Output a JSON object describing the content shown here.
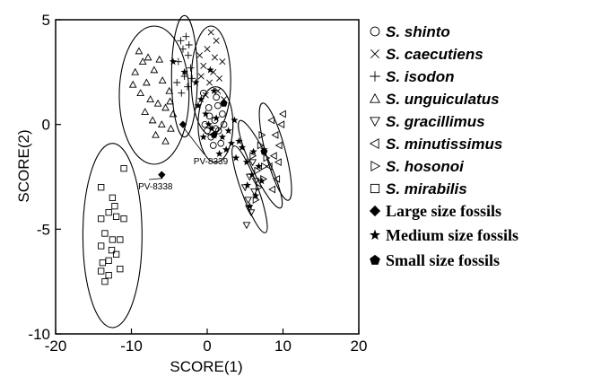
{
  "chart_data": {
    "type": "scatter",
    "xlabel": "SCORE(1)",
    "ylabel": "SCORE(2)",
    "xlim": [
      -20,
      20
    ],
    "ylim": [
      -10,
      5
    ],
    "xticks": [
      -20,
      -10,
      0,
      10,
      20
    ],
    "yticks": [
      -10,
      -5,
      0,
      5
    ],
    "grid": false,
    "legend_position": "right",
    "series": [
      {
        "name": "S. shinto",
        "marker": "circle",
        "points": [
          [
            -0.5,
            1.5
          ],
          [
            0.2,
            0.8
          ],
          [
            1.0,
            0.2
          ],
          [
            1.5,
            -0.3
          ],
          [
            0.5,
            -0.6
          ],
          [
            2.0,
            0.5
          ],
          [
            1.2,
            1.3
          ],
          [
            -0.3,
            0.0
          ],
          [
            0.8,
            -1.0
          ],
          [
            1.8,
            -0.9
          ],
          [
            2.2,
            0.0
          ],
          [
            0.3,
            0.4
          ],
          [
            1.4,
            0.9
          ],
          [
            0.0,
            -0.3
          ],
          [
            1.1,
            -0.2
          ]
        ]
      },
      {
        "name": "S. caecutiens",
        "marker": "x",
        "points": [
          [
            0.5,
            4.4
          ],
          [
            1.2,
            4.0
          ],
          [
            -1.0,
            3.3
          ],
          [
            0.0,
            3.6
          ],
          [
            1.0,
            3.2
          ],
          [
            -0.5,
            2.8
          ],
          [
            2.0,
            3.0
          ],
          [
            0.8,
            2.5
          ],
          [
            1.6,
            2.2
          ],
          [
            0.3,
            2.0
          ],
          [
            -0.8,
            2.3
          ],
          [
            1.4,
            1.6
          ],
          [
            -0.2,
            1.4
          ],
          [
            2.2,
            1.2
          ]
        ]
      },
      {
        "name": "S. isodon",
        "marker": "plus",
        "points": [
          [
            -3.5,
            4.0
          ],
          [
            -2.8,
            4.2
          ],
          [
            -3.2,
            3.6
          ],
          [
            -2.5,
            3.3
          ],
          [
            -3.8,
            3.0
          ],
          [
            -2.2,
            2.7
          ],
          [
            -3.0,
            2.3
          ],
          [
            -2.6,
            1.8
          ],
          [
            -3.4,
            1.5
          ],
          [
            -2.0,
            2.2
          ],
          [
            -4.0,
            2.0
          ],
          [
            -2.4,
            3.8
          ]
        ]
      },
      {
        "name": "S. unguiculatus",
        "marker": "triangle-up",
        "points": [
          [
            -9.0,
            3.5
          ],
          [
            -8.5,
            3.0
          ],
          [
            -7.8,
            3.2
          ],
          [
            -9.5,
            2.5
          ],
          [
            -8.0,
            2.0
          ],
          [
            -7.0,
            2.6
          ],
          [
            -8.8,
            1.5
          ],
          [
            -7.5,
            1.2
          ],
          [
            -6.5,
            1.0
          ],
          [
            -5.5,
            0.8
          ],
          [
            -6.0,
            0.0
          ],
          [
            -5.0,
            1.6
          ],
          [
            -4.5,
            0.5
          ],
          [
            -7.2,
            0.2
          ],
          [
            -6.8,
            -0.5
          ],
          [
            -5.5,
            -0.8
          ],
          [
            -4.8,
            -0.2
          ],
          [
            -8.2,
            0.6
          ],
          [
            -5.9,
            2.1
          ],
          [
            -9.8,
            1.9
          ],
          [
            -6.3,
            3.1
          ],
          [
            -4.9,
            1.1
          ]
        ]
      },
      {
        "name": "S. gracillimus",
        "marker": "triangle-down",
        "points": [
          [
            5.0,
            -3.0
          ],
          [
            5.4,
            -3.6
          ],
          [
            5.8,
            -4.2
          ],
          [
            5.6,
            -2.5
          ],
          [
            6.2,
            -3.2
          ],
          [
            5.2,
            -4.8
          ],
          [
            6.0,
            -1.8
          ],
          [
            5.5,
            -4.0
          ],
          [
            6.4,
            -2.7
          ]
        ]
      },
      {
        "name": "S. minutissimus",
        "marker": "triangle-left",
        "points": [
          [
            8.5,
            0.2
          ],
          [
            9.0,
            -0.5
          ],
          [
            8.8,
            -1.5
          ],
          [
            9.5,
            -1.0
          ],
          [
            8.2,
            -2.0
          ],
          [
            9.2,
            -2.6
          ],
          [
            8.6,
            -3.1
          ],
          [
            9.8,
            0.0
          ],
          [
            10.0,
            0.5
          ],
          [
            9.4,
            -1.8
          ]
        ]
      },
      {
        "name": "S. hosonoi",
        "marker": "triangle-right",
        "points": [
          [
            6.0,
            -1.5
          ],
          [
            6.6,
            -2.2
          ],
          [
            7.0,
            -1.0
          ],
          [
            6.8,
            -3.0
          ],
          [
            7.5,
            -2.0
          ],
          [
            7.2,
            -0.5
          ],
          [
            6.4,
            -3.6
          ],
          [
            7.8,
            -1.6
          ],
          [
            7.4,
            -2.6
          ]
        ]
      },
      {
        "name": "S. mirabilis",
        "marker": "square",
        "points": [
          [
            -11.0,
            -2.1
          ],
          [
            -14.0,
            -3.0
          ],
          [
            -12.5,
            -3.5
          ],
          [
            -13.0,
            -4.2
          ],
          [
            -14.0,
            -4.5
          ],
          [
            -12.0,
            -4.4
          ],
          [
            -11.0,
            -4.5
          ],
          [
            -13.5,
            -5.2
          ],
          [
            -12.5,
            -5.5
          ],
          [
            -11.5,
            -5.5
          ],
          [
            -14.0,
            -5.8
          ],
          [
            -12.0,
            -6.2
          ],
          [
            -13.0,
            -6.5
          ],
          [
            -11.5,
            -6.9
          ],
          [
            -14.0,
            -7.0
          ],
          [
            -13.0,
            -7.2
          ],
          [
            -13.5,
            -7.5
          ],
          [
            -12.6,
            -6.0
          ],
          [
            -13.8,
            -6.6
          ],
          [
            -12.2,
            -3.9
          ]
        ]
      },
      {
        "name": "Large size fossils",
        "marker": "diamond",
        "points": [
          [
            -3.2,
            0.0
          ],
          [
            -6.0,
            -2.4
          ]
        ]
      },
      {
        "name": "Medium size fossils",
        "marker": "star",
        "points": [
          [
            -4.5,
            3.0
          ],
          [
            -3.0,
            2.5
          ],
          [
            -1.5,
            2.0
          ],
          [
            -0.8,
            1.2
          ],
          [
            -0.2,
            0.5
          ],
          [
            0.2,
            0.0
          ],
          [
            0.6,
            -0.2
          ],
          [
            1.2,
            0.3
          ],
          [
            2.0,
            -0.6
          ],
          [
            2.5,
            -1.2
          ],
          [
            3.2,
            -0.9
          ],
          [
            3.8,
            -1.6
          ],
          [
            4.2,
            -0.8
          ],
          [
            5.2,
            -1.8
          ],
          [
            5.9,
            -2.4
          ],
          [
            6.4,
            -3.4
          ],
          [
            5.6,
            -3.9
          ],
          [
            6.8,
            -2.0
          ],
          [
            7.5,
            -1.2
          ],
          [
            7.2,
            -2.7
          ],
          [
            -0.5,
            -0.6
          ],
          [
            0.9,
            1.6
          ],
          [
            1.6,
            -1.4
          ],
          [
            2.8,
            -0.3
          ],
          [
            3.6,
            0.2
          ],
          [
            4.6,
            -1.1
          ],
          [
            6.1,
            -1.3
          ],
          [
            5.3,
            -2.9
          ],
          [
            0.4,
            2.6
          ],
          [
            -1.2,
            0.9
          ]
        ]
      },
      {
        "name": "Small size fossils",
        "marker": "pentagon",
        "points": [
          [
            2.2,
            1.0
          ],
          [
            7.5,
            -1.3
          ],
          [
            0.9,
            -0.5
          ]
        ]
      }
    ],
    "ellipses": [
      {
        "center": [
          -7.0,
          1.4
        ],
        "rx": 4.6,
        "ry": 3.3,
        "angle_deg": 0
      },
      {
        "center": [
          -3.0,
          2.3
        ],
        "rx": 1.7,
        "ry": 2.9,
        "angle_deg": 0
      },
      {
        "center": [
          0.5,
          2.1
        ],
        "rx": 2.6,
        "ry": 2.6,
        "angle_deg": 0
      },
      {
        "center": [
          1.1,
          0.0
        ],
        "rx": 2.3,
        "ry": 1.8,
        "angle_deg": 0
      },
      {
        "center": [
          5.6,
          -3.1
        ],
        "rx": 1.1,
        "ry": 2.2,
        "angle_deg": -20
      },
      {
        "center": [
          7.0,
          -1.9
        ],
        "rx": 1.2,
        "ry": 2.3,
        "angle_deg": -25
      },
      {
        "center": [
          9.0,
          -1.3
        ],
        "rx": 1.3,
        "ry": 2.4,
        "angle_deg": -15
      },
      {
        "center": [
          -12.5,
          -5.3
        ],
        "rx": 3.9,
        "ry": 4.4,
        "angle_deg": 0
      }
    ],
    "annotations": [
      {
        "text": "PV-8339",
        "point": [
          -3.2,
          0.0
        ],
        "text_at": [
          -1.8,
          -1.9
        ]
      },
      {
        "text": "PV-8338",
        "point": [
          -6.0,
          -2.4
        ],
        "text_at": [
          -9.1,
          -3.1
        ]
      }
    ]
  }
}
